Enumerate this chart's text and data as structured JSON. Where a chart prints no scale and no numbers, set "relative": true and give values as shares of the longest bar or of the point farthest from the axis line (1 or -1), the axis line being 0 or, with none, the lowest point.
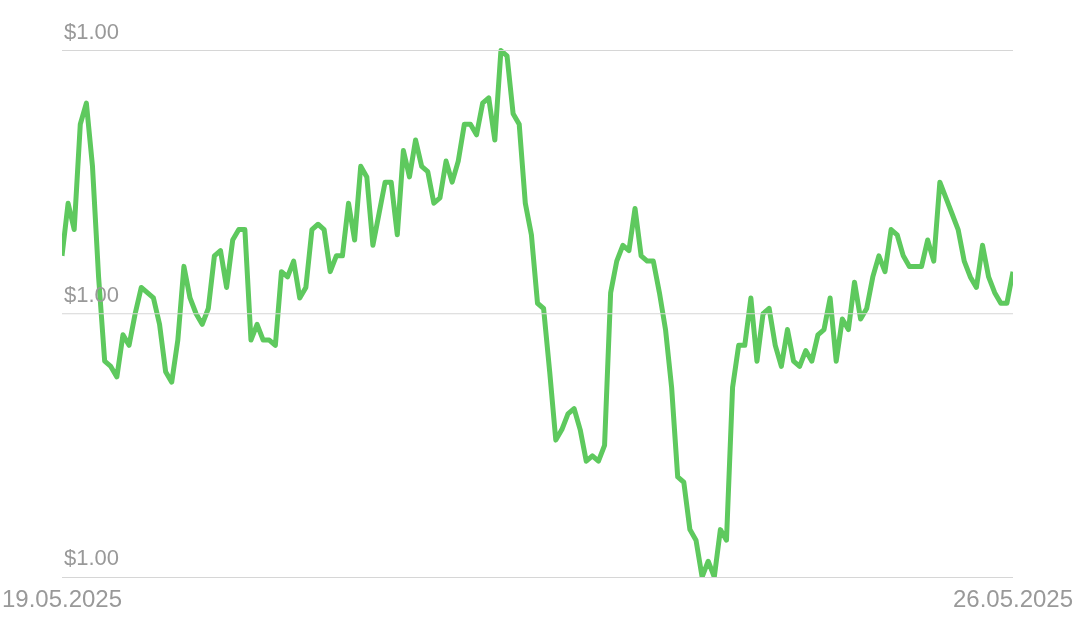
{
  "chart_data": {
    "type": "line",
    "relative": true,
    "color": "#5ec95e",
    "marker": "none",
    "line_style": "solid",
    "ref_lines": [
      {
        "axis": "y",
        "value": 1,
        "color": "#d6d6d6"
      },
      {
        "axis": "y",
        "value": 0.5,
        "color": "#d6d6d6"
      }
    ],
    "annotations": [
      "$1.00",
      "$1.00",
      "$1.00"
    ],
    "categories": [
      "19.05.2025",
      null,
      null,
      null,
      null,
      null,
      null,
      null,
      null,
      null,
      null,
      null,
      null,
      null,
      null,
      null,
      null,
      null,
      null,
      null,
      null,
      null,
      null,
      null,
      null,
      null,
      null,
      null,
      null,
      null,
      null,
      null,
      null,
      null,
      null,
      null,
      null,
      null,
      null,
      null,
      null,
      null,
      null,
      null,
      null,
      null,
      null,
      null,
      null,
      null,
      null,
      null,
      null,
      null,
      null,
      null,
      null,
      null,
      null,
      null,
      null,
      null,
      null,
      null,
      null,
      null,
      null,
      null,
      null,
      null,
      null,
      null,
      null,
      null,
      null,
      null,
      null,
      null,
      null,
      null,
      null,
      null,
      null,
      null,
      null,
      null,
      null,
      null,
      null,
      null,
      null,
      null,
      null,
      null,
      null,
      null,
      null,
      null,
      null,
      null,
      null,
      null,
      null,
      null,
      null,
      null,
      null,
      null,
      null,
      null,
      null,
      null,
      null,
      null,
      null,
      null,
      null,
      null,
      null,
      null,
      null,
      null,
      null,
      null,
      null,
      null,
      null,
      null,
      null,
      null,
      null,
      null,
      null,
      null,
      null,
      null,
      null,
      null,
      null,
      null,
      null,
      null,
      null,
      null,
      null,
      null,
      null,
      null,
      null,
      null,
      null,
      null,
      null,
      null,
      null,
      null,
      "26.05.2025"
    ],
    "values": [
      0.61,
      0.71,
      0.66,
      0.86,
      0.9,
      0.78,
      0.57,
      0.41,
      0.4,
      0.38,
      0.46,
      0.44,
      0.5,
      0.55,
      0.54,
      0.53,
      0.48,
      0.39,
      0.37,
      0.45,
      0.59,
      0.53,
      0.5,
      0.48,
      0.51,
      0.61,
      0.62,
      0.55,
      0.64,
      0.66,
      0.66,
      0.45,
      0.48,
      0.45,
      0.45,
      0.44,
      0.58,
      0.57,
      0.6,
      0.53,
      0.55,
      0.66,
      0.67,
      0.66,
      0.58,
      0.61,
      0.61,
      0.71,
      0.64,
      0.78,
      0.76,
      0.63,
      0.69,
      0.75,
      0.75,
      0.65,
      0.81,
      0.76,
      0.83,
      0.78,
      0.77,
      0.71,
      0.72,
      0.79,
      0.75,
      0.79,
      0.86,
      0.86,
      0.84,
      0.9,
      0.91,
      0.83,
      1.0,
      0.99,
      0.88,
      0.86,
      0.71,
      0.65,
      0.52,
      0.51,
      0.39,
      0.26,
      0.28,
      0.31,
      0.32,
      0.28,
      0.22,
      0.23,
      0.22,
      0.25,
      0.54,
      0.6,
      0.63,
      0.62,
      0.7,
      0.61,
      0.6,
      0.6,
      0.54,
      0.47,
      0.36,
      0.19,
      0.18,
      0.09,
      0.07,
      0.0,
      0.03,
      0.0,
      0.09,
      0.07,
      0.36,
      0.44,
      0.44,
      0.53,
      0.41,
      0.5,
      0.51,
      0.44,
      0.4,
      0.47,
      0.41,
      0.4,
      0.43,
      0.41,
      0.46,
      0.47,
      0.53,
      0.41,
      0.49,
      0.47,
      0.56,
      0.49,
      0.51,
      0.57,
      0.61,
      0.58,
      0.66,
      0.65,
      0.61,
      0.59,
      0.59,
      0.59,
      0.64,
      0.6,
      0.75,
      0.72,
      0.69,
      0.66,
      0.6,
      0.57,
      0.55,
      0.63,
      0.57,
      0.54,
      0.52,
      0.52,
      0.58
    ]
  }
}
